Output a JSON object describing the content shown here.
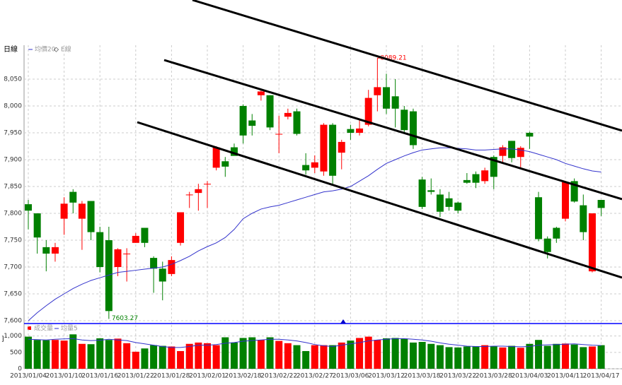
{
  "chart_data": {
    "type": "candlestick",
    "title": "日線",
    "legend": [
      "均價20",
      "E線"
    ],
    "volume_legend": [
      "成交量",
      "均量5"
    ],
    "up_color": "#ff0000",
    "down_color": "#008000",
    "ma_color": "#3333cc",
    "categories": [
      "2013/01/04",
      null,
      null,
      null,
      "2013/01/10",
      null,
      null,
      null,
      "2013/01/16",
      null,
      null,
      null,
      "2013/01/22",
      null,
      null,
      null,
      "2013/01/28",
      null,
      null,
      null,
      "2013/02/01",
      null,
      null,
      null,
      "2013/02/18",
      null,
      null,
      null,
      "2013/02/22",
      null,
      null,
      null,
      "2013/02/27",
      null,
      null,
      null,
      "2013/03/06",
      null,
      null,
      null,
      "2013/03/12",
      null,
      null,
      null,
      "2013/03/18",
      null,
      null,
      null,
      "2013/03/22",
      null,
      null,
      null,
      "2013/03/28",
      null,
      null,
      null,
      "2013/04/03",
      null,
      null,
      null,
      "2013/04/11",
      null,
      null,
      null,
      "2013/04/17"
    ],
    "open": [
      7817,
      7800,
      7737,
      7725,
      7790,
      7840,
      7790,
      7823,
      7765,
      7750,
      7700,
      7725,
      7745,
      7773,
      7717,
      7697,
      7687,
      7745,
      7835,
      7838,
      7855,
      7885,
      7897,
      7923,
      8000,
      7973,
      8020,
      8020,
      7948,
      7980,
      7990,
      7890,
      7885,
      7878,
      7965,
      7913,
      7957,
      7950,
      7965,
      8020,
      8035,
      8018,
      7993,
      7990,
      7863,
      7843,
      7835,
      7828,
      7820,
      7862,
      7873,
      7860,
      7905,
      7907,
      7935,
      7905,
      7950,
      7830,
      7753,
      7773,
      7790,
      7860,
      7815,
      7692,
      7825
    ],
    "high": [
      7825,
      7800,
      7750,
      7745,
      7830,
      7845,
      7823,
      7823,
      7775,
      7775,
      7735,
      7735,
      7763,
      7773,
      7720,
      7710,
      7720,
      7802,
      7840,
      7855,
      7860,
      7925,
      7905,
      7930,
      8003,
      7985,
      8030,
      8020,
      7982,
      7995,
      7995,
      7912,
      7908,
      7968,
      7968,
      7937,
      7965,
      7975,
      8030,
      8089.21,
      8060,
      8050,
      8000,
      7995,
      7868,
      7865,
      7845,
      7840,
      7822,
      7875,
      7878,
      7885,
      7908,
      7927,
      7935,
      7925,
      7952,
      7840,
      7757,
      7775,
      7860,
      7865,
      7835,
      7800,
      7825
    ],
    "low": [
      7770,
      7725,
      7692,
      7710,
      7760,
      7800,
      7732,
      7750,
      7690,
      7603.27,
      7683,
      7673,
      7745,
      7737,
      7652,
      7638,
      7683,
      7740,
      7810,
      7805,
      7810,
      7880,
      7868,
      7910,
      7930,
      7945,
      8010,
      7955,
      7912,
      7975,
      7945,
      7872,
      7875,
      7870,
      7855,
      7882,
      7937,
      7945,
      7962,
      7990,
      7985,
      7960,
      7950,
      7920,
      7808,
      7835,
      7793,
      7805,
      7800,
      7855,
      7847,
      7855,
      7845,
      7893,
      7895,
      7885,
      7920,
      7748,
      7716,
      7745,
      7785,
      7820,
      7750,
      7690,
      7795
    ],
    "close": [
      7805,
      7755,
      7725,
      7737,
      7818,
      7820,
      7818,
      7765,
      7700,
      7618,
      7733,
      7725,
      7758,
      7745,
      7697,
      7673,
      7713,
      7802,
      7835,
      7845,
      7855,
      7923,
      7887,
      7907,
      7945,
      7963,
      8027,
      7960,
      7948,
      7987,
      7948,
      7880,
      7895,
      7965,
      7870,
      7933,
      7950,
      7958,
      8015,
      8035,
      7995,
      7995,
      7955,
      7927,
      7812,
      7840,
      7803,
      7812,
      7805,
      7857,
      7857,
      7880,
      7868,
      7923,
      7903,
      7922,
      7943,
      7752,
      7728,
      7753,
      7858,
      7822,
      7765,
      7800,
      7810
    ],
    "ma": [
      7600,
      7615,
      7628,
      7640,
      7650,
      7660,
      7668,
      7675,
      7680,
      7685,
      7690,
      7692,
      7694,
      7696,
      7698,
      7700,
      7705,
      7712,
      7720,
      7730,
      7738,
      7745,
      7755,
      7770,
      7790,
      7800,
      7808,
      7812,
      7815,
      7820,
      7825,
      7830,
      7835,
      7840,
      7842,
      7845,
      7850,
      7860,
      7870,
      7882,
      7893,
      7900,
      7907,
      7913,
      7918,
      7920,
      7922,
      7922,
      7921,
      7920,
      7918,
      7918,
      7919,
      7920,
      7920,
      7918,
      7915,
      7910,
      7905,
      7900,
      7893,
      7888,
      7883,
      7879,
      7877
    ],
    "volume": [
      980,
      880,
      870,
      880,
      860,
      1050,
      760,
      750,
      930,
      880,
      920,
      780,
      520,
      620,
      720,
      700,
      680,
      540,
      760,
      800,
      780,
      720,
      960,
      800,
      940,
      960,
      880,
      960,
      850,
      780,
      720,
      540,
      720,
      720,
      720,
      800,
      860,
      940,
      980,
      880,
      930,
      940,
      920,
      800,
      820,
      760,
      720,
      660,
      650,
      680,
      680,
      720,
      680,
      650,
      700,
      640,
      760,
      880,
      700,
      760,
      770,
      740,
      660,
      680,
      720
    ],
    "volume_ma": [
      900,
      890,
      880,
      900,
      910,
      920,
      880,
      860,
      870,
      900,
      880,
      860,
      800,
      760,
      720,
      680,
      650,
      650,
      680,
      720,
      720,
      740,
      780,
      800,
      840,
      860,
      880,
      900,
      900,
      880,
      850,
      800,
      740,
      700,
      680,
      720,
      760,
      800,
      850,
      880,
      900,
      920,
      920,
      900,
      880,
      840,
      790,
      750,
      720,
      690,
      680,
      680,
      690,
      690,
      680,
      670,
      680,
      720,
      730,
      740,
      750,
      760,
      740,
      720,
      710
    ],
    "ylim": [
      7600,
      8100
    ],
    "yticks": [
      {
        "value": 7600,
        "label": "7,600"
      },
      {
        "value": 7650,
        "label": "7,650"
      },
      {
        "value": 7700,
        "label": "7,700"
      },
      {
        "value": 7750,
        "label": "7,750"
      },
      {
        "value": 7800,
        "label": "7,800"
      },
      {
        "value": 7850,
        "label": "7,850"
      },
      {
        "value": 7900,
        "label": "7,900"
      },
      {
        "value": 7950,
        "label": "7,950"
      },
      {
        "value": 8000,
        "label": "8,000"
      },
      {
        "value": 8050,
        "label": "8,050"
      }
    ],
    "vlim": [
      0,
      1100
    ],
    "vticks": [
      0,
      500,
      {
        "value": 1000,
        "label": "1,000"
      }
    ],
    "grid": true
  }
}
